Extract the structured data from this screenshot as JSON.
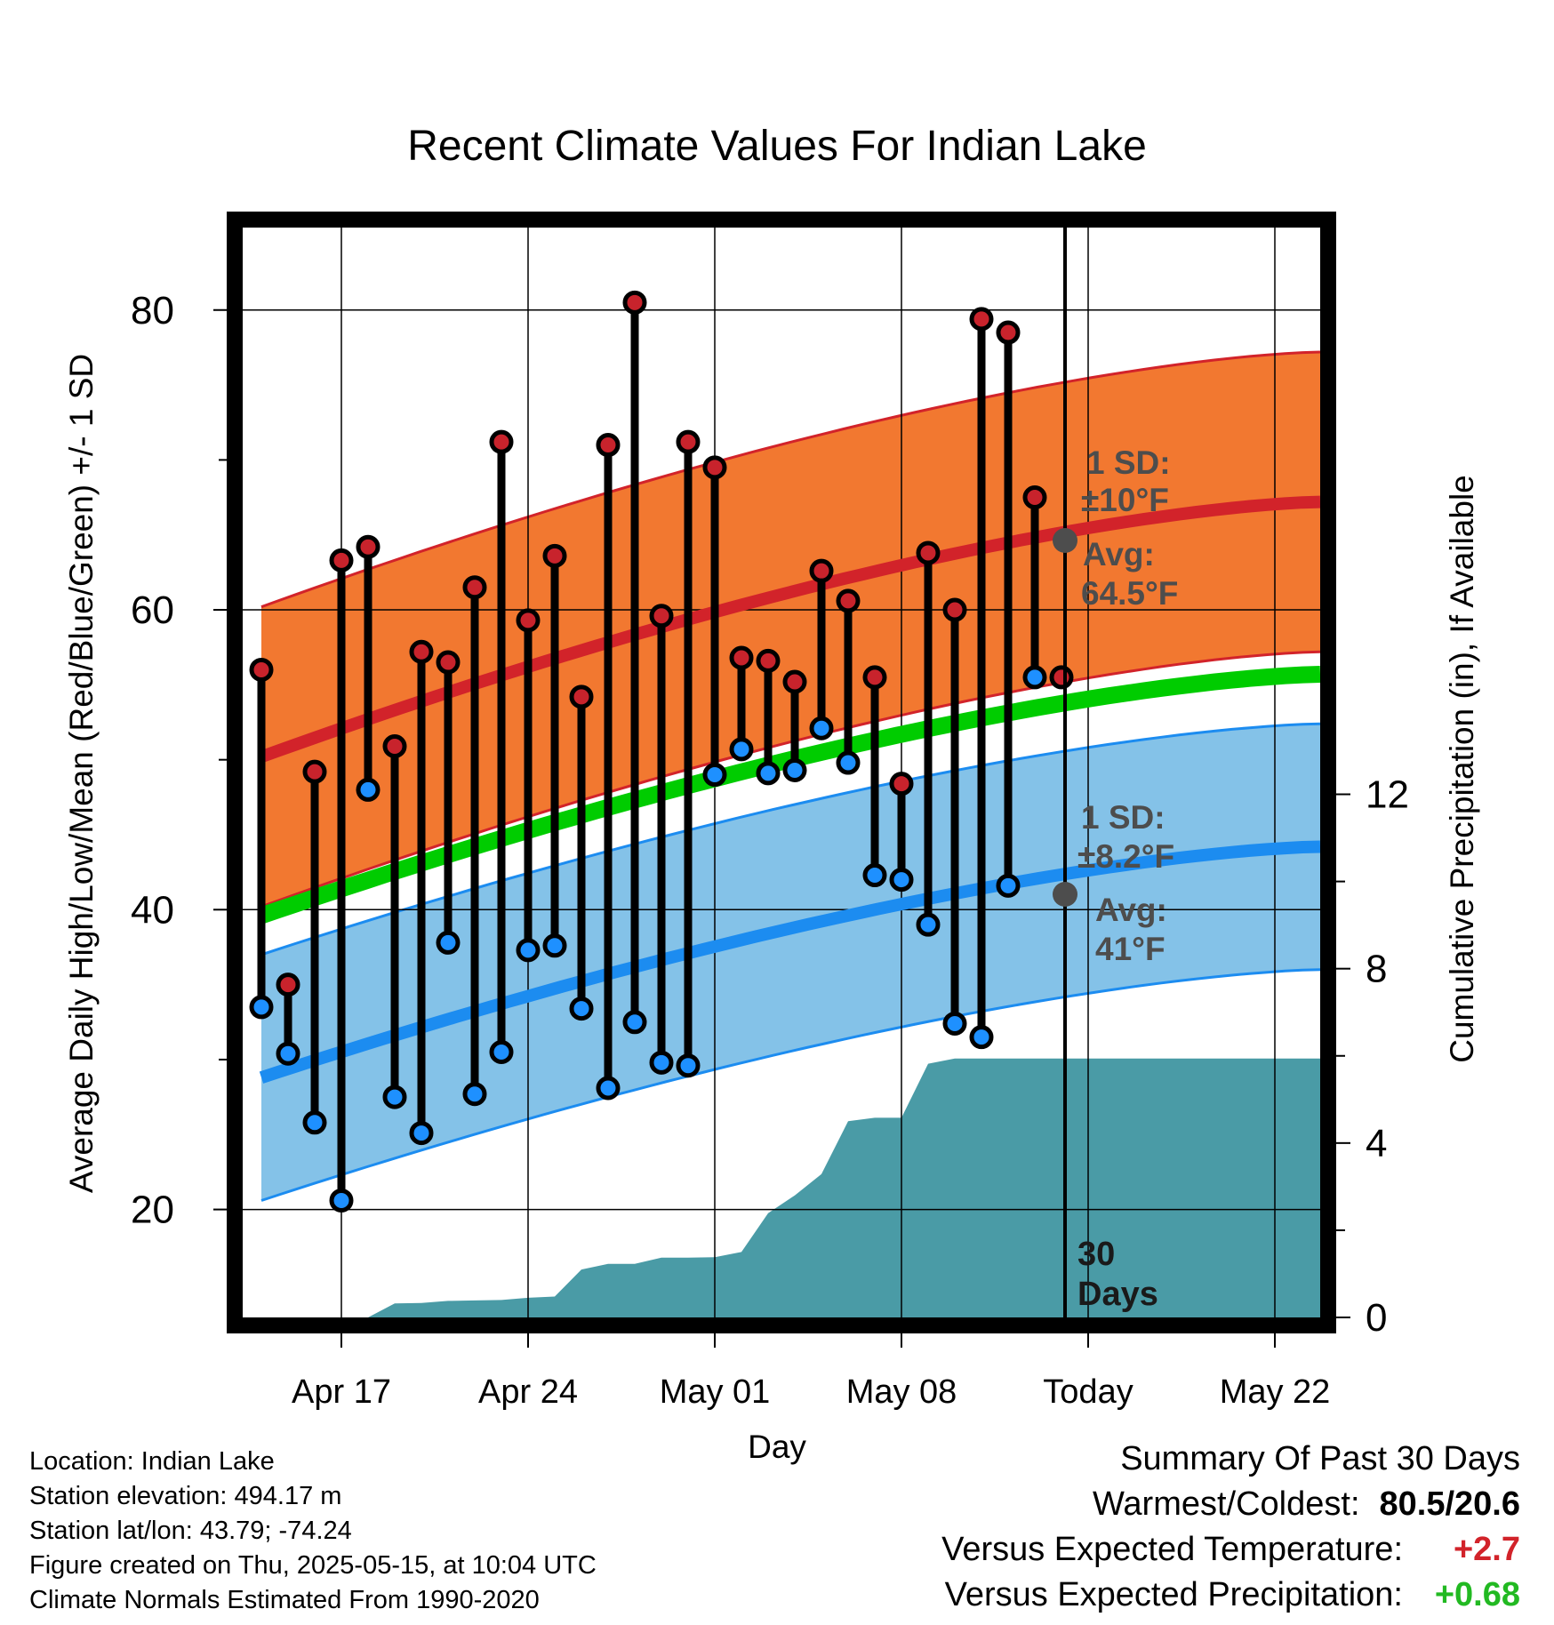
{
  "chart_data": {
    "type": "line",
    "title": "Recent Climate Values For Indian Lake",
    "xlabel": "Day",
    "ylabel": "Average Daily High/Low/Mean (Red/Blue/Green) +/- 1 SD",
    "y2label": "Cumulative Precipitation (in), If Available",
    "x_tick_labels": [
      "Apr 17",
      "Apr 24",
      "May 01",
      "May 08",
      "Today",
      "May 22"
    ],
    "x_tick_days": [
      17,
      24,
      31,
      38,
      45,
      52
    ],
    "xlim": [
      13.3,
      53.7
    ],
    "ylim": [
      12.8,
      85.5
    ],
    "y_ticks": [
      20,
      40,
      60,
      80
    ],
    "y2lim": [
      0,
      25
    ],
    "y2_ticks": [
      0,
      4,
      8,
      12
    ],
    "grid": true,
    "days": [
      14,
      15,
      16,
      17,
      18,
      19,
      20,
      21,
      22,
      23,
      24,
      25,
      26,
      27,
      28,
      29,
      30,
      31,
      32,
      33,
      34,
      35,
      36,
      37,
      38,
      39,
      40,
      41,
      42,
      43,
      44
    ],
    "daily_high": [
      56.0,
      35.0,
      49.2,
      63.3,
      64.2,
      50.9,
      57.2,
      56.5,
      61.5,
      71.2,
      59.3,
      63.6,
      54.2,
      71.0,
      80.5,
      59.6,
      71.2,
      69.5,
      56.8,
      56.6,
      55.2,
      62.6,
      60.6,
      55.5,
      48.4,
      63.8,
      60.0,
      79.4,
      78.5,
      67.5,
      55.5
    ],
    "daily_low": [
      33.5,
      30.4,
      25.8,
      20.6,
      48.0,
      27.5,
      25.1,
      37.8,
      27.7,
      30.5,
      37.3,
      37.6,
      33.4,
      28.1,
      32.5,
      29.8,
      29.6,
      49.0,
      50.7,
      49.1,
      49.3,
      52.1,
      49.8,
      42.3,
      42.0,
      39.0,
      32.4,
      31.5,
      41.6,
      55.5,
      null
    ],
    "expected_high": {
      "name": "Avg",
      "start_x": 14,
      "start_y": 50.2,
      "end_x": 53.7,
      "end_y": 67.2,
      "today": 64.5,
      "sd": 10
    },
    "expected_low": {
      "name": "Avg",
      "start_x": 14,
      "start_y": 28.8,
      "end_x": 53.7,
      "end_y": 44.2,
      "today": 41,
      "sd": 8.2
    },
    "expected_mean": {
      "start_x": 14,
      "start_y": 39.6,
      "end_x": 53.7,
      "end_y": 55.7
    },
    "precip_days": [
      14,
      15,
      16,
      17,
      18,
      19,
      20,
      21,
      22,
      23,
      24,
      25,
      26,
      27,
      28,
      29,
      30,
      31,
      32,
      33,
      34,
      35,
      36,
      37,
      38,
      39,
      40,
      41,
      42,
      43,
      44,
      45,
      46,
      47,
      48,
      49,
      50,
      51,
      52,
      53,
      53.7
    ],
    "precip_cumulative": [
      0,
      0,
      0,
      0,
      0,
      0.32,
      0.33,
      0.38,
      0.39,
      0.4,
      0.45,
      0.48,
      1.1,
      1.23,
      1.23,
      1.37,
      1.37,
      1.38,
      1.5,
      2.39,
      2.8,
      3.29,
      4.5,
      4.58,
      4.58,
      5.82,
      5.94,
      5.94,
      5.94,
      5.94,
      5.94,
      5.94,
      5.94,
      5.94,
      5.94,
      5.94,
      5.94,
      5.94,
      5.94,
      5.94,
      5.94
    ],
    "high_sd_label": "1 SD:",
    "high_sd_value": "±10°F",
    "high_avg_label": "Avg:",
    "high_avg_value": "64.5°F",
    "low_sd_label": "1 SD:",
    "low_sd_value": "±8.2°F",
    "low_avg_label": "Avg:",
    "low_avg_value": "41°F",
    "days_label_num": "30",
    "days_label_word": "Days",
    "colors": {
      "high_band": "#F27830",
      "high_line": "#D2232A",
      "low_band": "#84C2E8",
      "low_line": "#1C8CF0",
      "mean_line": "#00CC00",
      "precip": "#4A9BA6",
      "high_marker": "#C8232C",
      "low_marker": "#1E90FF",
      "annotation": "#4D4D4D"
    }
  },
  "info": {
    "location": "Location: Indian Lake",
    "elevation": "Station elevation: 494.17 m",
    "latlon": "Station lat/lon: 43.79; -74.24",
    "created": "Figure created on Thu, 2025-05-15, at 10:04 UTC",
    "normals": "Climate Normals Estimated From 1990-2020"
  },
  "summary": {
    "title": "Summary Of Past 30 Days",
    "warm_cold_label": "Warmest/Coldest:",
    "warm_cold_value": "80.5/20.6",
    "temp_label": "Versus Expected Temperature:",
    "temp_value": "+2.7",
    "temp_color": "#D2232A",
    "precip_label": "Versus Expected Precipitation:",
    "precip_value": "+0.68",
    "precip_color": "#22B922"
  }
}
